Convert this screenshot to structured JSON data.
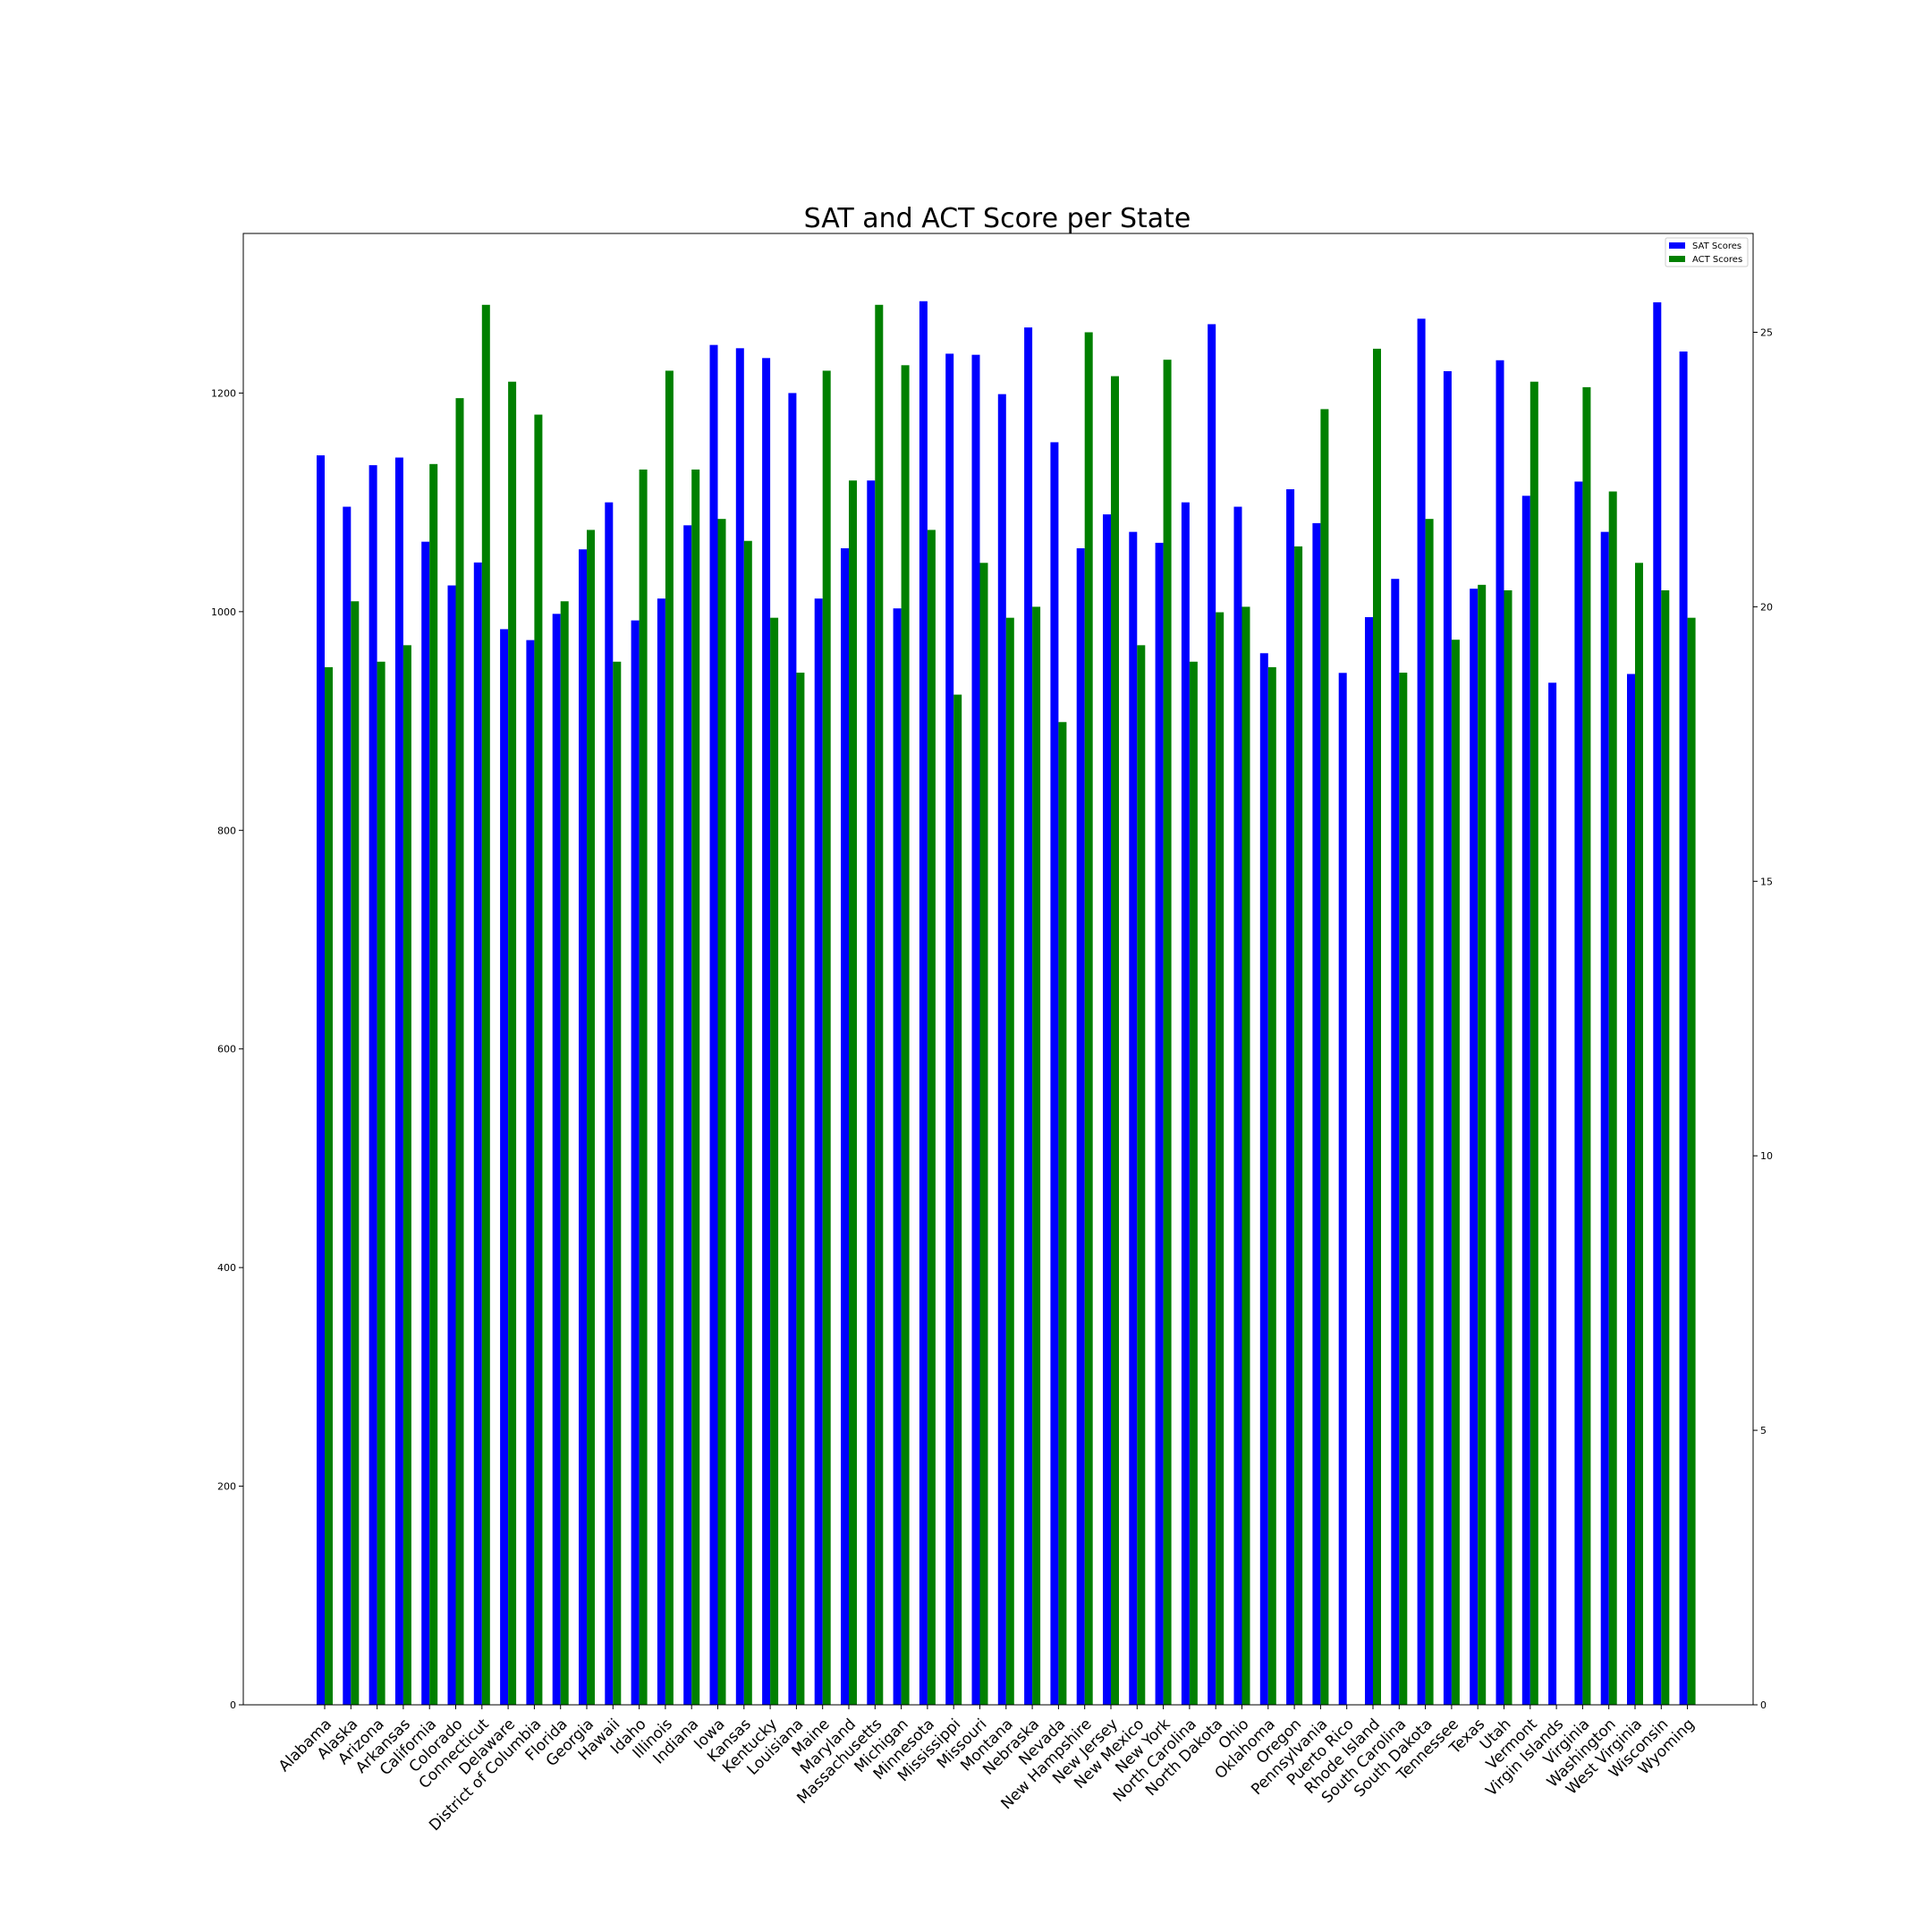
{
  "chart_data": {
    "type": "bar",
    "title": "SAT and ACT Score per State",
    "xlabel": "",
    "ylabel": "",
    "categories": [
      "Alabama",
      "Alaska",
      "Arizona",
      "Arkansas",
      "California",
      "Colorado",
      "Connecticut",
      "Delaware",
      "District of Columbia",
      "Florida",
      "Georgia",
      "Hawaii",
      "Idaho",
      "Illinois",
      "Indiana",
      "Iowa",
      "Kansas",
      "Kentucky",
      "Louisiana",
      "Maine",
      "Maryland",
      "Massachusetts",
      "Michigan",
      "Minnesota",
      "Mississippi",
      "Missouri",
      "Montana",
      "Nebraska",
      "Nevada",
      "New Hampshire",
      "New Jersey",
      "New Mexico",
      "New York",
      "North Carolina",
      "North Dakota",
      "Ohio",
      "Oklahoma",
      "Oregon",
      "Pennsylvania",
      "Puerto Rico",
      "Rhode Island",
      "South Carolina",
      "South Dakota",
      "Tennessee",
      "Texas",
      "Utah",
      "Vermont",
      "Virgin Islands",
      "Virginia",
      "Washington",
      "West Virginia",
      "Wisconsin",
      "Wyoming"
    ],
    "series": [
      {
        "name": "SAT Scores",
        "color": "#0000ff",
        "axis": "left",
        "ylim": [
          0,
          1346
        ],
        "yticks": [
          0,
          200,
          400,
          600,
          800,
          1000,
          1200
        ],
        "values": [
          1143,
          1096,
          1134,
          1141,
          1064,
          1024,
          1045,
          984,
          974,
          998,
          1057,
          1100,
          992,
          1012,
          1079,
          1244,
          1241,
          1232,
          1200,
          1012,
          1058,
          1120,
          1003,
          1284,
          1236,
          1235,
          1199,
          1260,
          1155,
          1058,
          1089,
          1073,
          1063,
          1100,
          1263,
          1096,
          962,
          1112,
          1081,
          944,
          995,
          1030,
          1268,
          1220,
          1021,
          1230,
          1106,
          935,
          1119,
          1073,
          943,
          1283,
          1238
        ]
      },
      {
        "name": "ACT Scores",
        "color": "#008000",
        "axis": "right",
        "ylim": [
          0,
          26.8
        ],
        "yticks": [
          0,
          5,
          10,
          15,
          20,
          25
        ],
        "values": [
          18.9,
          20.1,
          19.0,
          19.3,
          22.6,
          23.8,
          25.5,
          24.1,
          23.5,
          20.1,
          21.4,
          19.0,
          22.5,
          24.3,
          22.5,
          21.6,
          21.2,
          19.8,
          18.8,
          24.3,
          22.3,
          25.5,
          24.4,
          21.4,
          18.4,
          20.8,
          19.8,
          20.0,
          17.9,
          25.0,
          24.2,
          19.3,
          24.5,
          19.0,
          19.9,
          20.0,
          18.9,
          21.1,
          23.6,
          null,
          24.7,
          18.8,
          21.6,
          19.4,
          20.4,
          20.3,
          24.1,
          null,
          24.0,
          22.1,
          20.8,
          20.3,
          19.8
        ]
      }
    ],
    "legend": {
      "position": "top-right",
      "entries": [
        "SAT Scores",
        "ACT Scores"
      ]
    }
  }
}
